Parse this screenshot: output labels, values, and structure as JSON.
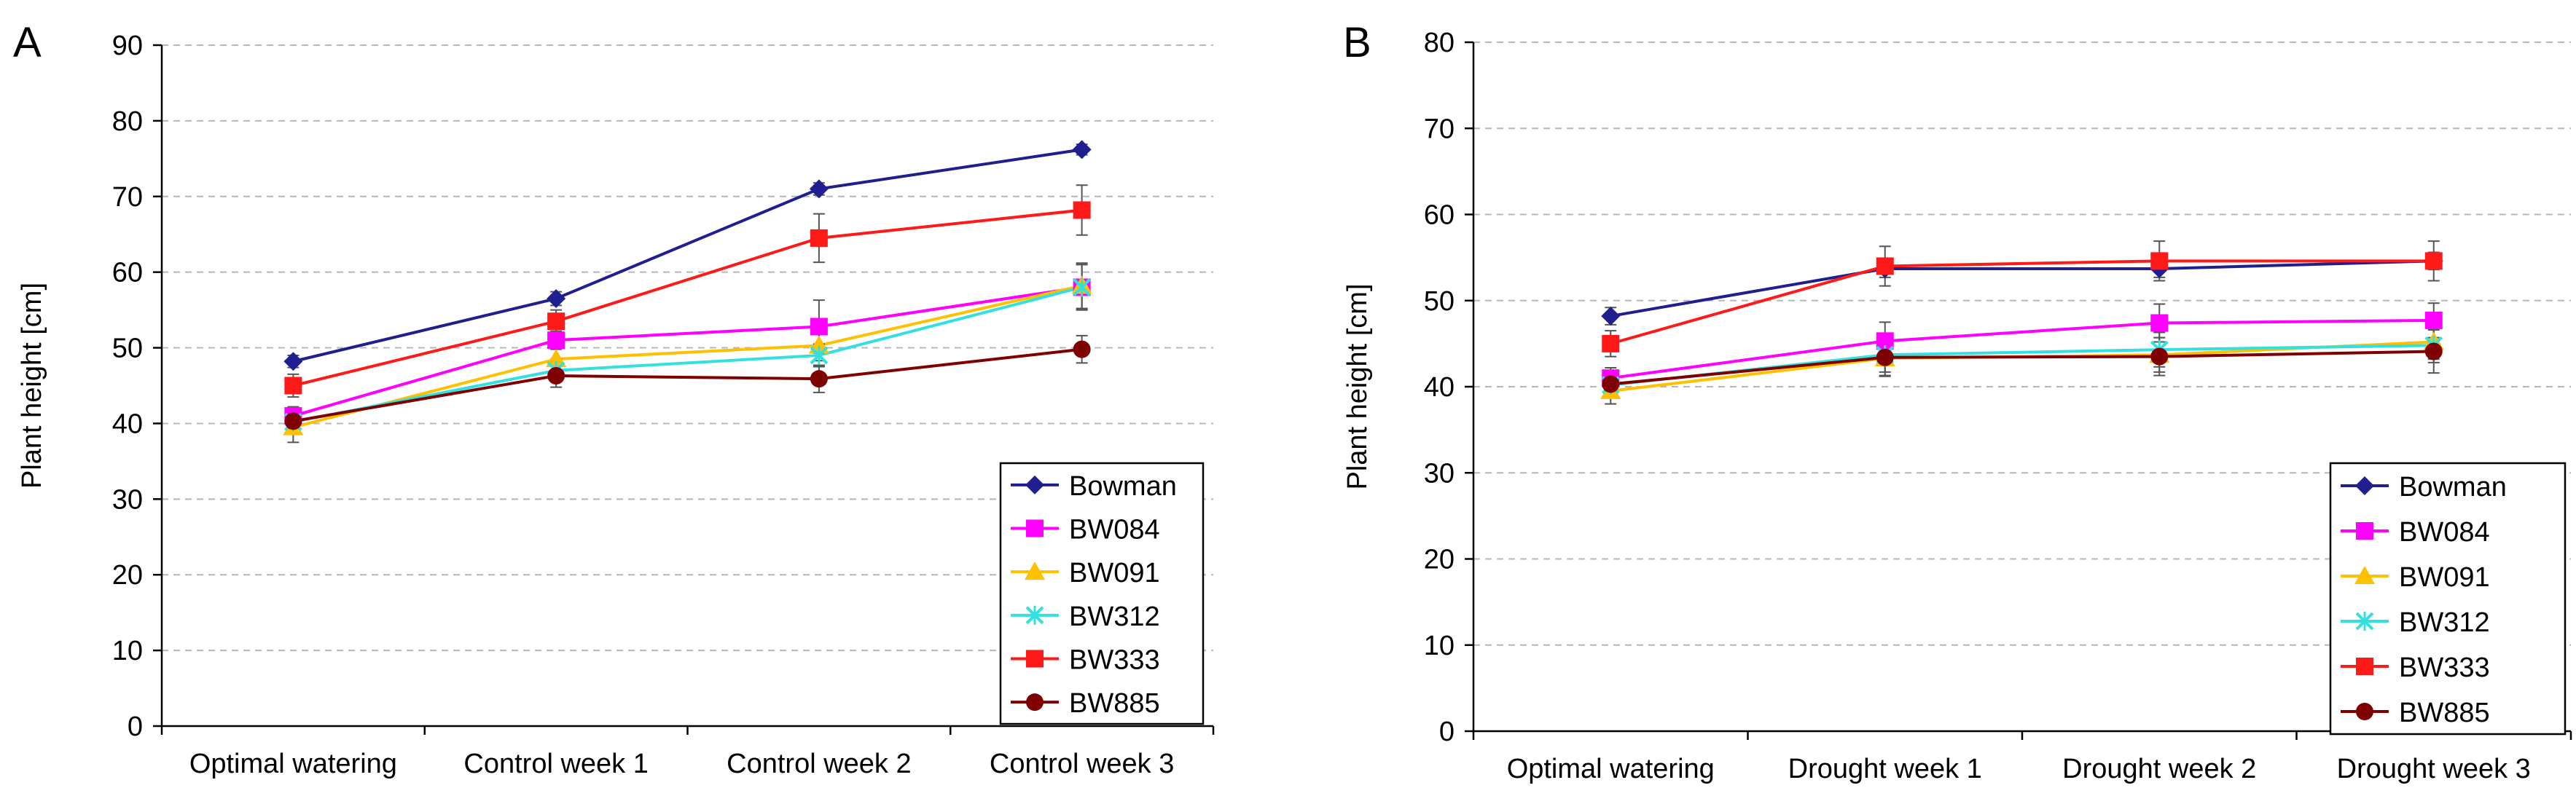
{
  "chart_data": [
    {
      "type": "line",
      "panel_label": "A",
      "title": "",
      "xlabel": "",
      "ylabel": "Plant height [cm]",
      "ylim": [
        0,
        90
      ],
      "ytick_step": 10,
      "grid": true,
      "legend_position": "bottom-right",
      "categories": [
        "Optimal watering",
        "Control week 1",
        "Control week 2",
        "Control week 3"
      ],
      "series": [
        {
          "name": "Bowman",
          "color": "#1f1f8f",
          "marker": "diamond",
          "values": [
            48.2,
            56.5,
            71.0,
            76.2
          ],
          "errors": [
            0.8,
            0.9,
            0.8,
            0.7
          ]
        },
        {
          "name": "BW084",
          "color": "#ff00ff",
          "marker": "square",
          "values": [
            41.0,
            51.0,
            52.8,
            58.0
          ],
          "errors": [
            1.2,
            1.2,
            3.5,
            3.0
          ]
        },
        {
          "name": "BW091",
          "color": "#ffc000",
          "marker": "triangle",
          "values": [
            39.5,
            48.5,
            50.3,
            58.2
          ],
          "errors": [
            2.0,
            2.0,
            2.0,
            3.0
          ]
        },
        {
          "name": "BW312",
          "color": "#33e0e0",
          "marker": "x",
          "values": [
            40.2,
            47.0,
            49.0,
            58.0
          ],
          "errors": [
            1.5,
            1.5,
            1.5,
            3.0
          ]
        },
        {
          "name": "BW333",
          "color": "#ff1a1a",
          "marker": "square",
          "values": [
            45.0,
            53.5,
            64.5,
            68.2
          ],
          "errors": [
            1.5,
            1.5,
            3.2,
            3.3
          ]
        },
        {
          "name": "BW885",
          "color": "#7f0000",
          "marker": "circle",
          "values": [
            40.3,
            46.3,
            45.9,
            49.8
          ],
          "errors": [
            1.5,
            1.5,
            1.8,
            1.8
          ]
        }
      ]
    },
    {
      "type": "line",
      "panel_label": "B",
      "title": "",
      "xlabel": "",
      "ylabel": "Plant height [cm]",
      "ylim": [
        0,
        80
      ],
      "ytick_step": 10,
      "grid": true,
      "legend_position": "bottom-right",
      "categories": [
        "Optimal watering",
        "Drought week 1",
        "Drought week 2",
        "Drought week 3"
      ],
      "series": [
        {
          "name": "Bowman",
          "color": "#1f1f8f",
          "marker": "diamond",
          "values": [
            48.2,
            53.7,
            53.7,
            54.6
          ],
          "errors": [
            1.0,
            1.0,
            1.0,
            1.0
          ]
        },
        {
          "name": "BW084",
          "color": "#ff00ff",
          "marker": "square",
          "values": [
            41.0,
            45.3,
            47.4,
            47.7
          ],
          "errors": [
            1.2,
            2.2,
            2.2,
            2.0
          ]
        },
        {
          "name": "BW091",
          "color": "#ffc000",
          "marker": "triangle",
          "values": [
            39.5,
            43.3,
            43.7,
            45.2
          ],
          "errors": [
            1.5,
            2.0,
            2.0,
            2.0
          ]
        },
        {
          "name": "BW312",
          "color": "#33e0e0",
          "marker": "x",
          "values": [
            40.2,
            43.7,
            44.3,
            44.8
          ],
          "errors": [
            1.5,
            2.0,
            2.0,
            2.0
          ]
        },
        {
          "name": "BW333",
          "color": "#ff1a1a",
          "marker": "square",
          "values": [
            45.0,
            54.0,
            54.6,
            54.6
          ],
          "errors": [
            1.5,
            2.3,
            2.3,
            2.3
          ]
        },
        {
          "name": "BW885",
          "color": "#7f0000",
          "marker": "circle",
          "values": [
            40.3,
            43.4,
            43.5,
            44.1
          ],
          "errors": [
            1.5,
            2.2,
            2.2,
            2.5
          ]
        }
      ]
    }
  ]
}
